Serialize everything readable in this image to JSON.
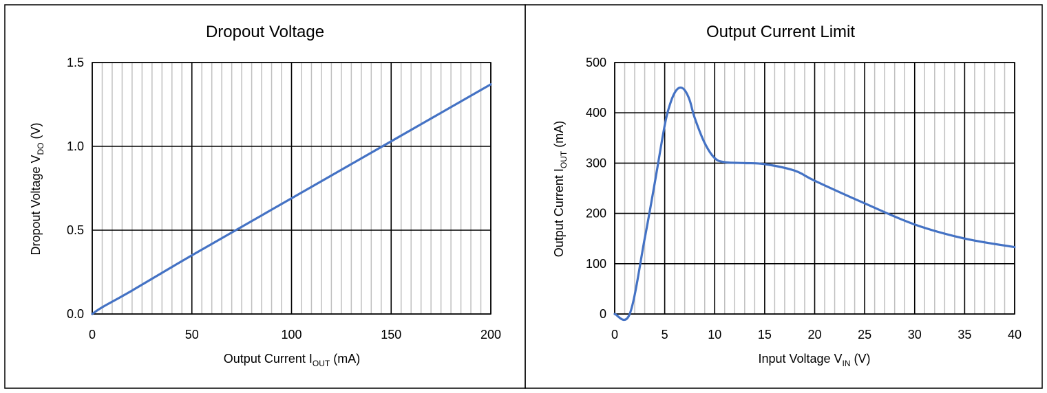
{
  "colors": {
    "series": "#4472C4",
    "minor_grid": "#BFBFBF",
    "major_grid": "#000000",
    "frame": "#000000"
  },
  "chart_data": [
    {
      "type": "line",
      "title": "Dropout Voltage",
      "xlabel": {
        "main": "Output Current I",
        "sub": "OUT",
        "unit": " (mA)"
      },
      "ylabel": {
        "main": "Dropout Voltage V",
        "sub": "DO",
        "unit": " (V)"
      },
      "xlim": [
        0,
        200
      ],
      "ylim": [
        0,
        1.5
      ],
      "x_ticks": [
        0,
        50,
        100,
        150,
        200
      ],
      "x_tick_labels": [
        "0",
        "50",
        "100",
        "150",
        "200"
      ],
      "y_ticks": [
        0,
        0.5,
        1.0,
        1.5
      ],
      "y_tick_labels": [
        "0.0",
        "0.5",
        "1.0",
        "1.5"
      ],
      "x_minor_step": 5,
      "grid": true,
      "series": [
        {
          "x": [
            0,
            5,
            20,
            50,
            100,
            150,
            200
          ],
          "y": [
            0,
            0.04,
            0.14,
            0.35,
            0.69,
            1.03,
            1.37
          ]
        }
      ]
    },
    {
      "type": "line",
      "title": "Output Current Limit",
      "xlabel": {
        "main": "Input Voltage V",
        "sub": "IN",
        "unit": " (V)"
      },
      "ylabel": {
        "main": "Output Current I",
        "sub": "OUT",
        "unit": " (mA)"
      },
      "xlim": [
        0,
        40
      ],
      "ylim": [
        0,
        500
      ],
      "x_ticks": [
        0,
        5,
        10,
        15,
        20,
        25,
        30,
        35,
        40
      ],
      "x_tick_labels": [
        "0",
        "5",
        "10",
        "15",
        "20",
        "25",
        "30",
        "35",
        "40"
      ],
      "y_ticks": [
        0,
        100,
        200,
        300,
        400,
        500
      ],
      "y_tick_labels": [
        "0",
        "100",
        "200",
        "300",
        "400",
        "500"
      ],
      "x_minor_step": 1,
      "grid": true,
      "series": [
        {
          "x": [
            0,
            1.5,
            3,
            4,
            5,
            5.5,
            6,
            6.5,
            7,
            7.5,
            8,
            9,
            10,
            11,
            13,
            15,
            18,
            20,
            25,
            30,
            35,
            40
          ],
          "y": [
            0,
            0,
            150,
            260,
            375,
            415,
            440,
            450,
            445,
            425,
            390,
            340,
            310,
            302,
            300,
            298,
            285,
            265,
            220,
            178,
            150,
            133
          ]
        }
      ]
    }
  ]
}
